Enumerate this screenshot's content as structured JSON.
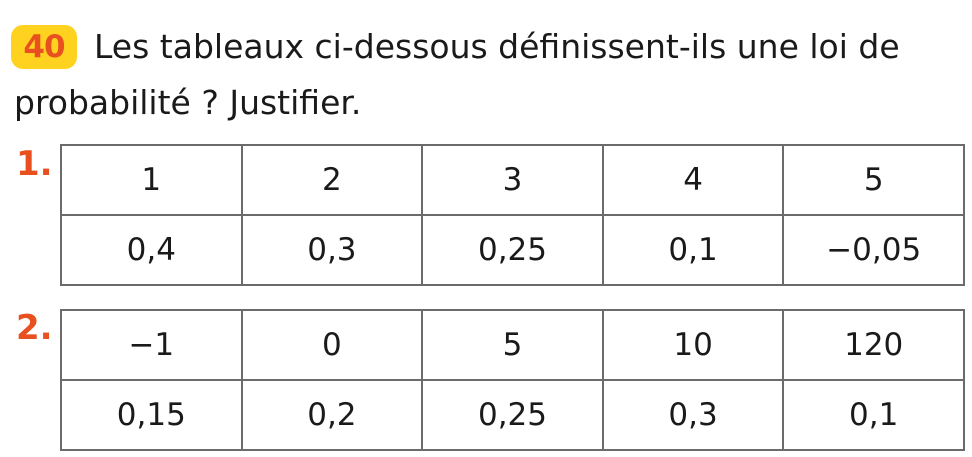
{
  "exercise": {
    "number": "40",
    "prompt_line1": "Les tableaux ci-dessous définissent-ils une loi de",
    "prompt_line2": "probabilité ? Justifier."
  },
  "tables": [
    {
      "label": "1.",
      "values": [
        "1",
        "2",
        "3",
        "4",
        "5"
      ],
      "probabilities": [
        "0,4",
        "0,3",
        "0,25",
        "0,1",
        "−0,05"
      ]
    },
    {
      "label": "2.",
      "values": [
        "−1",
        "0",
        "5",
        "10",
        "120"
      ],
      "probabilities": [
        "0,15",
        "0,2",
        "0,25",
        "0,3",
        "0,1"
      ]
    }
  ],
  "colors": {
    "badge_background": "#ffd21f",
    "accent": "#e8501f",
    "border": "#6b6b6b"
  }
}
